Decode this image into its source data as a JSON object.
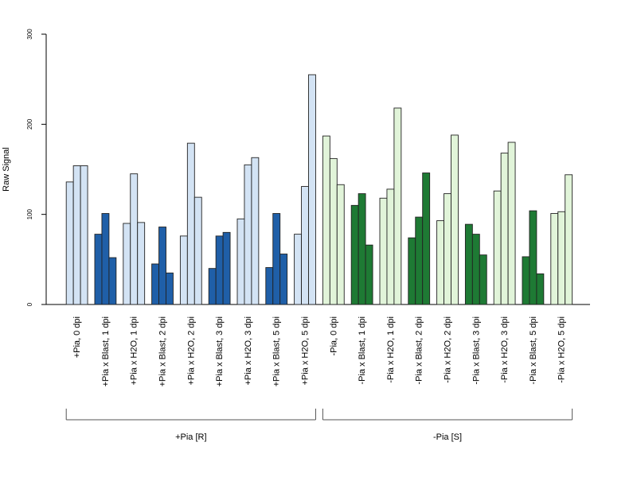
{
  "chart_data": {
    "type": "bar",
    "title": "",
    "xlabel": "",
    "ylabel": "Raw Signal",
    "ylim": [
      0,
      300
    ],
    "yticks": [
      0,
      100,
      200,
      300
    ],
    "bars_per_category": 3,
    "categories": [
      {
        "label": "+Pia, 0 dpi",
        "values": [
          136,
          154,
          154
        ],
        "color": "#d3e3f4"
      },
      {
        "label": "+Pia x Blast, 1 dpi",
        "values": [
          78,
          101,
          52
        ],
        "color": "#1f5fa8"
      },
      {
        "label": "+Pia x H2O, 1 dpi",
        "values": [
          90,
          145,
          91
        ],
        "color": "#d3e3f4"
      },
      {
        "label": "+Pia x Blast, 2 dpi",
        "values": [
          45,
          86,
          35
        ],
        "color": "#1f5fa8"
      },
      {
        "label": "+Pia x H2O, 2 dpi",
        "values": [
          76,
          179,
          119
        ],
        "color": "#d3e3f4"
      },
      {
        "label": "+Pia x Blast, 3 dpi",
        "values": [
          40,
          76,
          80
        ],
        "color": "#1f5fa8"
      },
      {
        "label": "+Pia x H2O, 3 dpi",
        "values": [
          95,
          155,
          163
        ],
        "color": "#d3e3f4"
      },
      {
        "label": "+Pia x Blast, 5 dpi",
        "values": [
          41,
          101,
          56
        ],
        "color": "#1f5fa8"
      },
      {
        "label": "+Pia x H2O, 5 dpi",
        "values": [
          78,
          131,
          255
        ],
        "color": "#d3e3f4"
      },
      {
        "label": "-Pia, 0 dpi",
        "values": [
          187,
          162,
          133
        ],
        "color": "#e1f4d9"
      },
      {
        "label": "-Pia x Blast, 1 dpi",
        "values": [
          110,
          123,
          66
        ],
        "color": "#1e7a34"
      },
      {
        "label": "-Pia x H2O, 1 dpi",
        "values": [
          118,
          128,
          218
        ],
        "color": "#e1f4d9"
      },
      {
        "label": "-Pia x Blast, 2 dpi",
        "values": [
          74,
          97,
          146
        ],
        "color": "#1e7a34"
      },
      {
        "label": "-Pia x H2O, 2 dpi",
        "values": [
          93,
          123,
          188
        ],
        "color": "#e1f4d9"
      },
      {
        "label": "-Pia x Blast, 3 dpi",
        "values": [
          89,
          78,
          55
        ],
        "color": "#1e7a34"
      },
      {
        "label": "-Pia x H2O, 3 dpi",
        "values": [
          126,
          168,
          180
        ],
        "color": "#e1f4d9"
      },
      {
        "label": "-Pia x Blast, 5 dpi",
        "values": [
          53,
          104,
          34
        ],
        "color": "#1e7a34"
      },
      {
        "label": "-Pia x H2O, 5 dpi",
        "values": [
          101,
          103,
          144
        ],
        "color": "#e1f4d9"
      }
    ],
    "groups": [
      {
        "label": "+Pia [R]",
        "first_category": 0,
        "last_category": 8
      },
      {
        "label": "-Pia [S]",
        "first_category": 9,
        "last_category": 17
      }
    ],
    "grid": false,
    "legend": "none"
  }
}
